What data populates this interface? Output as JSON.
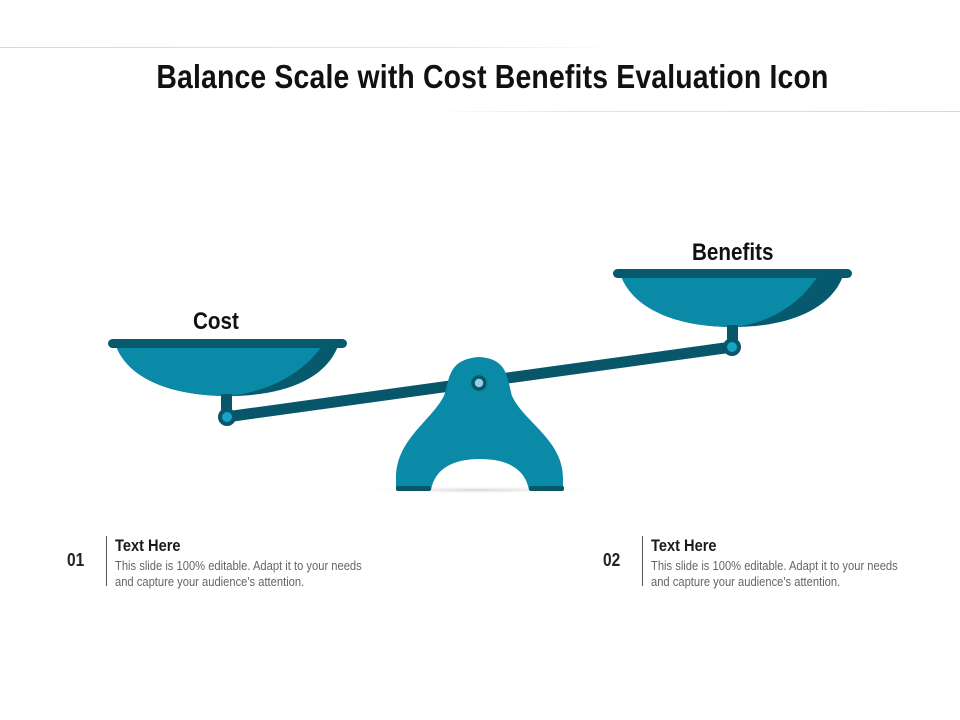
{
  "title": "Balance Scale with Cost Benefits Evaluation Icon",
  "colors": {
    "pan_light": "#0b8aa8",
    "pan_dark": "#075a6e",
    "beam": "#07566a",
    "base": "#0b8aa8"
  },
  "scale": {
    "left_label": "Cost",
    "right_label": "Benefits"
  },
  "items": [
    {
      "number": "01",
      "heading": "Text Here",
      "description": "This slide is 100% editable. Adapt it to your needs and capture your audience's attention."
    },
    {
      "number": "02",
      "heading": "Text Here",
      "description": "This slide is 100% editable. Adapt it to your needs and capture your audience's attention."
    }
  ]
}
